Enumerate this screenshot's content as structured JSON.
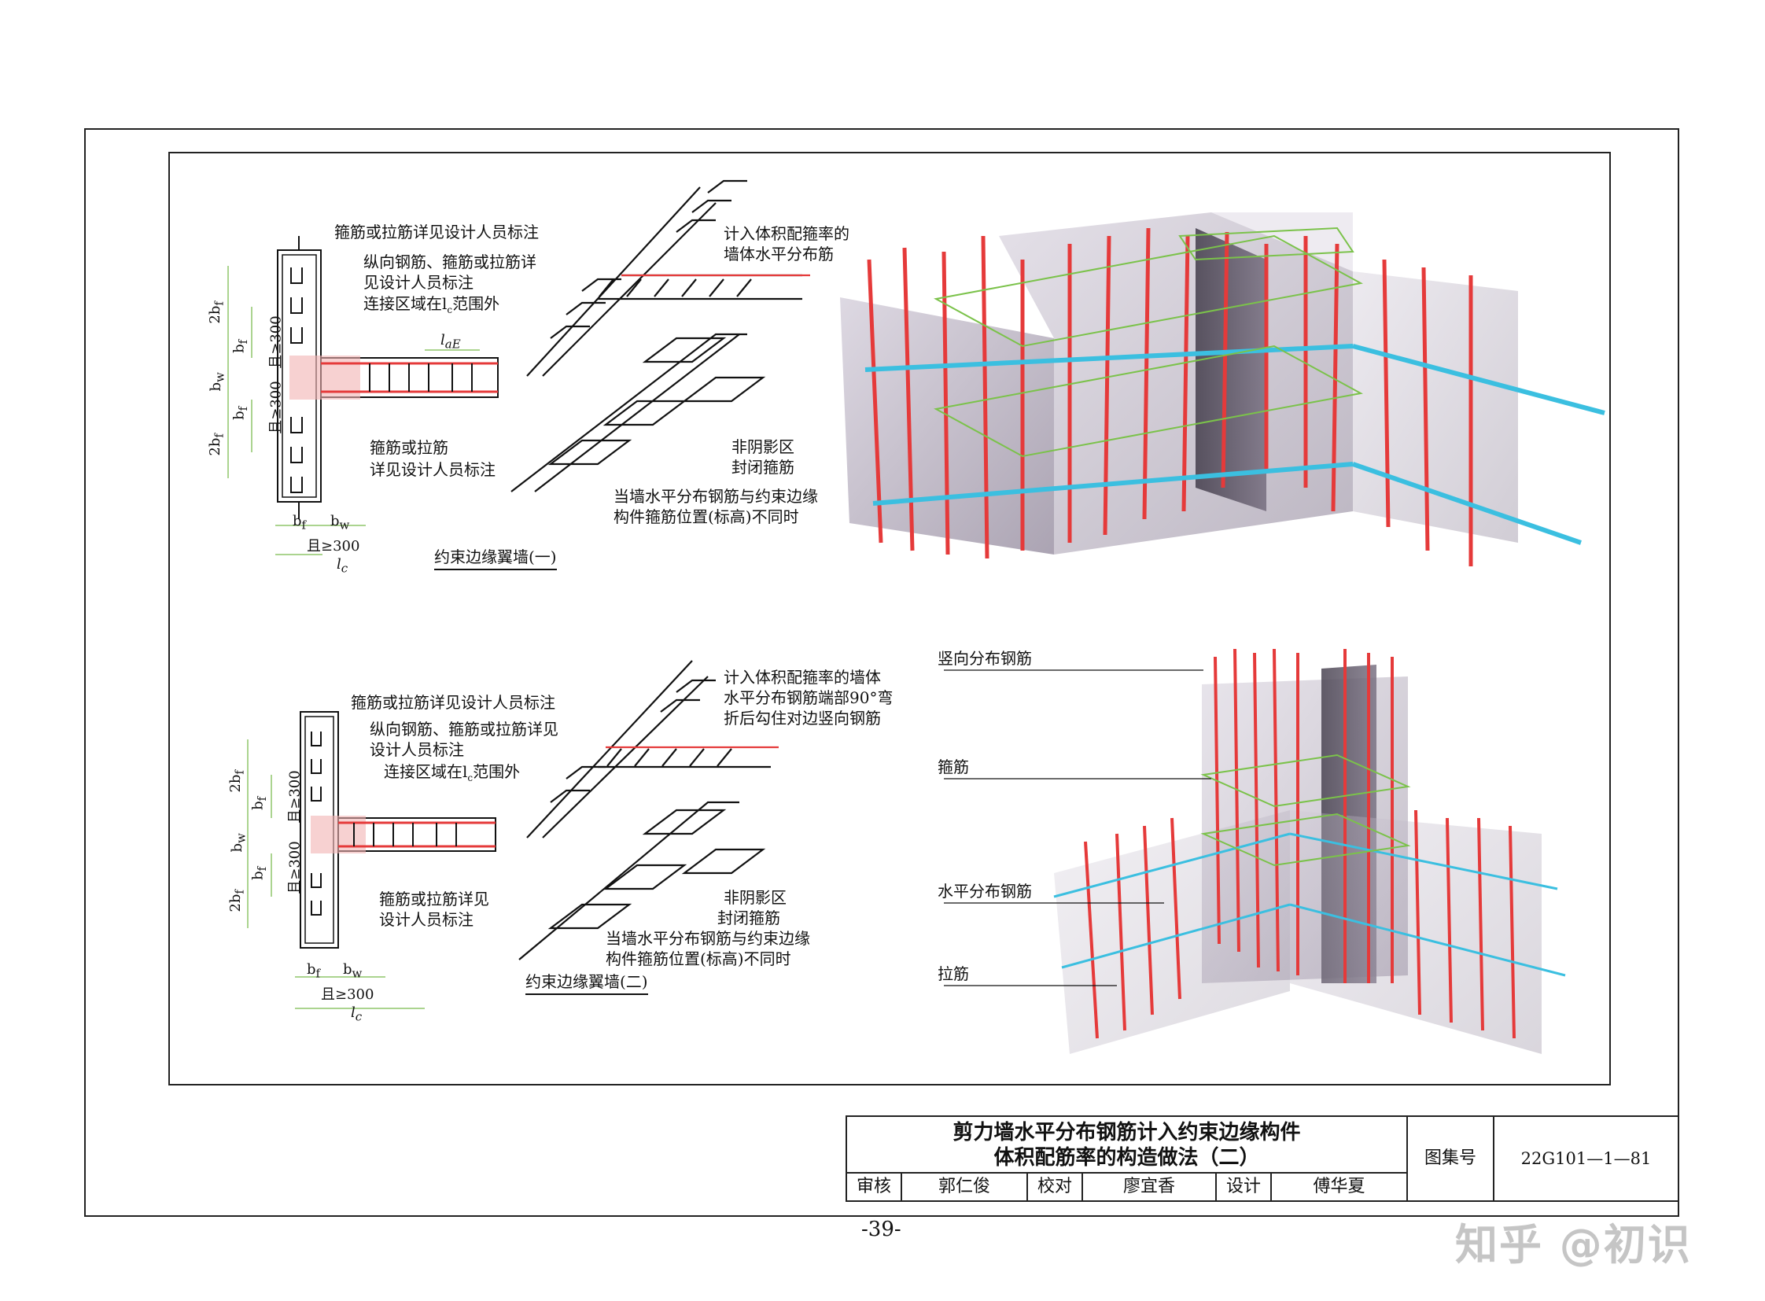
{
  "diagram1": {
    "caption": "约束边缘翼墙(一)",
    "note_top": "箍筋或拉筋详见设计人员标注",
    "note_long1": "纵向钢筋、箍筋或拉筋详",
    "note_long2": "见设计人员标注",
    "note_conn": "连接区域在l",
    "note_conn_sub": "c",
    "note_conn_tail": "范围外",
    "note_bottom1": "箍筋或拉筋",
    "note_bottom2": "详见设计人员标注",
    "note_iso1": "计入体积配箍率的",
    "note_iso2": "墙体水平分布筋",
    "note_shade1": "非阴影区",
    "note_shade2": "封闭箍筋",
    "note_diff1": "当墙水平分布钢筋与约束边缘",
    "note_diff2": "构件箍筋位置(标高)不同时",
    "dim_2bf_top": "2b",
    "dim_bf_top": "b",
    "dim_300_top": "且≥300",
    "dim_bw": "b",
    "dim_300_bot": "且≥300",
    "dim_2bf_bot": "2b",
    "dim_bf_bot": "b",
    "dim_bf_h": "b",
    "dim_bw_h": "b",
    "dim_300_h": "且≥300",
    "dim_lc": "l",
    "dim_lae": "l"
  },
  "diagram2": {
    "caption": "约束边缘翼墙(二)",
    "note_top": "箍筋或拉筋详见设计人员标注",
    "note_long1": "纵向钢筋、箍筋或拉筋详见",
    "note_long2": "设计人员标注",
    "note_conn": "连接区域在l",
    "note_conn_sub": "c",
    "note_conn_tail": "范围外",
    "note_bottom1": "箍筋或拉筋详见",
    "note_bottom2": "设计人员标注",
    "note_iso1": "计入体积配箍率的墙体",
    "note_iso2": "水平分布钢筋端部90°弯",
    "note_iso3": "折后勾住对边竖向钢筋",
    "note_shade1": "非阴影区",
    "note_shade2": "封闭箍筋",
    "note_diff1": "当墙水平分布钢筋与约束边缘",
    "note_diff2": "构件箍筋位置(标高)不同时",
    "dim_2bf_top": "2b",
    "dim_bf_top": "b",
    "dim_300_top": "且≥300",
    "dim_bw": "b",
    "dim_300_bot": "且≥300",
    "dim_2bf_bot": "2b",
    "dim_bf_bot": "b",
    "dim_bf_h": "b",
    "dim_bw_h": "b",
    "dim_300_h": "且≥300",
    "dim_lc": "l"
  },
  "legend3d": {
    "vertical": "竖向分布钢筋",
    "stirrup": "箍筋",
    "horizontal": "水平分布钢筋",
    "tie": "拉筋"
  },
  "titleblock": {
    "title1": "剪力墙水平分布钢筋计入约束边缘构件",
    "title2": "体积配筋率的构造做法（二）",
    "atlas_label": "图集号",
    "atlas_no": "22G101—1—81",
    "review_label": "审核",
    "review_name": "郭仁俊",
    "check_label": "校对",
    "check_name": "廖宜香",
    "design_label": "设计",
    "design_name": "傅华夏"
  },
  "page_number": "-39-",
  "watermark": "知乎 @初识",
  "colors": {
    "rebar_red": "#e53a3a",
    "rebar_cyan": "#3bbfe0",
    "stirrup_green": "#7bc24a",
    "concrete": "#9a8fa6",
    "dim_green": "#8fc66a"
  }
}
